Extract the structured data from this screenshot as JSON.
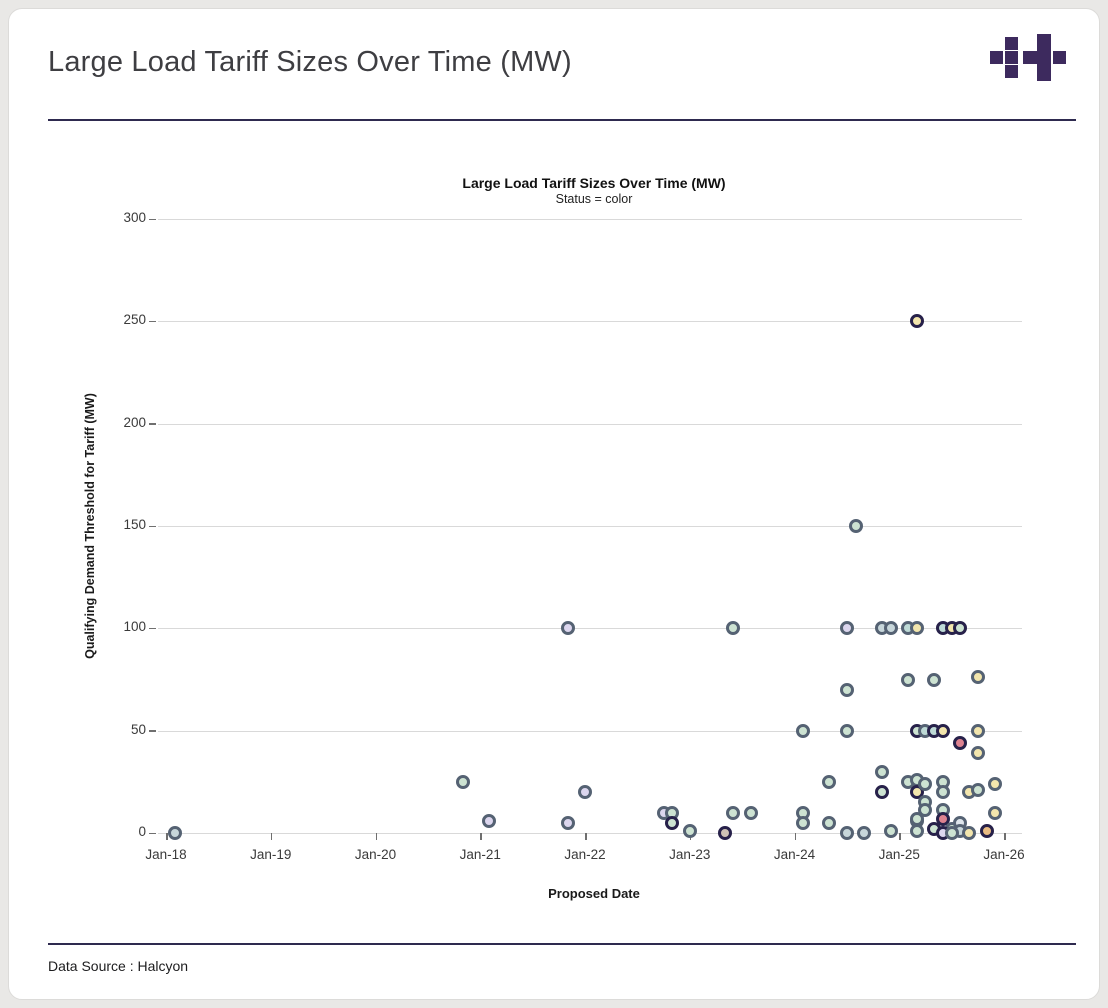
{
  "page": {
    "header_title": "Large Load Tariff Sizes Over Time (MW)",
    "footer_text": "Data Source : Halcyon",
    "accent_color": "#2e2a4f",
    "logo_color": "#3d2a5e"
  },
  "chart_data": {
    "type": "scatter",
    "title": "Large Load Tariff Sizes Over Time (MW)",
    "subtitle": "Status = color",
    "xlabel": "Proposed Date",
    "ylabel": "Qualifying Demand Threshold for Tariff (MW)",
    "x_ticks": [
      "Jan-18",
      "Jan-19",
      "Jan-20",
      "Jan-21",
      "Jan-22",
      "Jan-23",
      "Jan-24",
      "Jan-25",
      "Jan-26"
    ],
    "y_ticks": [
      0,
      50,
      100,
      150,
      200,
      250,
      300
    ],
    "ylim": [
      0,
      300
    ],
    "grid": true,
    "legend": "none",
    "color_encoding": "Status = color (no legend shown)",
    "status_colors": {
      "gray": {
        "fill": "#c7d6da",
        "ring": "#556273"
      },
      "green": {
        "fill": "#cde3d2",
        "ring": "#556273"
      },
      "teal": {
        "fill": "#bedad6",
        "ring": "#556273"
      },
      "lavender": {
        "fill": "#dcd6ee",
        "ring": "#556273"
      },
      "yellow": {
        "fill": "#f3e6ad",
        "ring": "#556273"
      },
      "red": {
        "fill": "#dd8290",
        "ring": "#27214a"
      },
      "orange": {
        "fill": "#e9bc83",
        "ring": "#27214a"
      },
      "tan": {
        "fill": "#cfc2b5",
        "ring": "#27214a"
      },
      "paleblue": {
        "fill": "#dfe6ec",
        "ring": "#556273"
      }
    },
    "navy_ring": "#27214a",
    "points": [
      {
        "date": "2018-02",
        "mw": 0,
        "color": "gray"
      },
      {
        "date": "2020-11",
        "mw": 25,
        "color": "green"
      },
      {
        "date": "2021-02",
        "mw": 6,
        "color": "lavender"
      },
      {
        "date": "2021-11",
        "mw": 100,
        "color": "lavender"
      },
      {
        "date": "2021-11",
        "mw": 5,
        "color": "lavender"
      },
      {
        "date": "2022-01",
        "mw": 20,
        "color": "lavender"
      },
      {
        "date": "2022-10",
        "mw": 10,
        "color": "lavender"
      },
      {
        "date": "2022-11",
        "mw": 10,
        "color": "green"
      },
      {
        "date": "2022-11",
        "mw": 5,
        "color": "green",
        "ring": "navy"
      },
      {
        "date": "2023-01",
        "mw": 1,
        "color": "green"
      },
      {
        "date": "2023-05",
        "mw": 0,
        "color": "tan",
        "ring": "navy"
      },
      {
        "date": "2023-06",
        "mw": 100,
        "color": "green"
      },
      {
        "date": "2023-06",
        "mw": 10,
        "color": "green"
      },
      {
        "date": "2023-08",
        "mw": 10,
        "color": "green"
      },
      {
        "date": "2024-02",
        "mw": 50,
        "color": "green"
      },
      {
        "date": "2024-02",
        "mw": 10,
        "color": "green"
      },
      {
        "date": "2024-02",
        "mw": 5,
        "color": "green"
      },
      {
        "date": "2024-05",
        "mw": 25,
        "color": "green"
      },
      {
        "date": "2024-05",
        "mw": 5,
        "color": "green"
      },
      {
        "date": "2024-07",
        "mw": 100,
        "color": "lavender"
      },
      {
        "date": "2024-07",
        "mw": 70,
        "color": "green"
      },
      {
        "date": "2024-07",
        "mw": 50,
        "color": "green"
      },
      {
        "date": "2024-07",
        "mw": 0,
        "color": "gray"
      },
      {
        "date": "2024-09",
        "mw": 0,
        "color": "gray"
      },
      {
        "date": "2024-08",
        "mw": 150,
        "color": "green"
      },
      {
        "date": "2024-11",
        "mw": 100,
        "color": "gray"
      },
      {
        "date": "2024-12",
        "mw": 100,
        "color": "gray"
      },
      {
        "date": "2024-11",
        "mw": 30,
        "color": "green"
      },
      {
        "date": "2024-11",
        "mw": 20,
        "color": "green",
        "ring": "navy"
      },
      {
        "date": "2024-12",
        "mw": 1,
        "color": "green"
      },
      {
        "date": "2025-02",
        "mw": 100,
        "color": "teal"
      },
      {
        "date": "2025-03",
        "mw": 100,
        "color": "yellow"
      },
      {
        "date": "2025-03",
        "mw": 250,
        "color": "yellow",
        "ring": "navy"
      },
      {
        "date": "2025-02",
        "mw": 75,
        "color": "green"
      },
      {
        "date": "2025-05",
        "mw": 75,
        "color": "green"
      },
      {
        "date": "2025-10",
        "mw": 76,
        "color": "yellow"
      },
      {
        "date": "2025-03",
        "mw": 50,
        "color": "green",
        "ring": "navy"
      },
      {
        "date": "2025-04",
        "mw": 50,
        "color": "teal"
      },
      {
        "date": "2025-05",
        "mw": 50,
        "color": "teal",
        "ring": "navy"
      },
      {
        "date": "2025-06",
        "mw": 50,
        "color": "yellow",
        "ring": "navy"
      },
      {
        "date": "2025-10",
        "mw": 50,
        "color": "yellow"
      },
      {
        "date": "2025-08",
        "mw": 44,
        "color": "red",
        "ring": "navy"
      },
      {
        "date": "2025-10",
        "mw": 39,
        "color": "yellow"
      },
      {
        "date": "2025-02",
        "mw": 25,
        "color": "green"
      },
      {
        "date": "2025-03",
        "mw": 26,
        "color": "green"
      },
      {
        "date": "2025-03",
        "mw": 20,
        "color": "yellow",
        "ring": "navy"
      },
      {
        "date": "2025-04",
        "mw": 24,
        "color": "green"
      },
      {
        "date": "2025-06",
        "mw": 25,
        "color": "green"
      },
      {
        "date": "2025-06",
        "mw": 20,
        "color": "green"
      },
      {
        "date": "2025-09",
        "mw": 20,
        "color": "yellow"
      },
      {
        "date": "2025-10",
        "mw": 21,
        "color": "green"
      },
      {
        "date": "2025-12",
        "mw": 24,
        "color": "yellow"
      },
      {
        "date": "2025-04",
        "mw": 15,
        "color": "green"
      },
      {
        "date": "2025-04",
        "mw": 11,
        "color": "green"
      },
      {
        "date": "2025-03",
        "mw": 6,
        "color": "green"
      },
      {
        "date": "2025-06",
        "mw": 11,
        "color": "green"
      },
      {
        "date": "2025-06",
        "mw": 7,
        "color": "red",
        "ring": "navy"
      },
      {
        "date": "2025-05",
        "mw": 2,
        "color": "green",
        "ring": "navy"
      },
      {
        "date": "2025-07",
        "mw": 2,
        "color": "green"
      },
      {
        "date": "2025-08",
        "mw": 5,
        "color": "paleblue"
      },
      {
        "date": "2025-08",
        "mw": 1,
        "color": "gray"
      },
      {
        "date": "2025-09",
        "mw": 0,
        "color": "yellow"
      },
      {
        "date": "2025-11",
        "mw": 1,
        "color": "orange",
        "ring": "navy"
      },
      {
        "date": "2025-12",
        "mw": 10,
        "color": "yellow"
      },
      {
        "date": "2025-03",
        "mw": 7,
        "color": "green"
      },
      {
        "date": "2025-03",
        "mw": 1,
        "color": "green"
      },
      {
        "date": "2025-06",
        "mw": 0,
        "color": "lavender",
        "ring": "navy"
      },
      {
        "date": "2025-07",
        "mw": 0,
        "color": "green"
      },
      {
        "date": "2025-06",
        "mw": 100,
        "color": "teal",
        "ring": "navy"
      },
      {
        "date": "2025-07",
        "mw": 100,
        "color": "yellow",
        "ring": "navy"
      },
      {
        "date": "2025-08",
        "mw": 100,
        "color": "green",
        "ring": "navy"
      }
    ]
  }
}
